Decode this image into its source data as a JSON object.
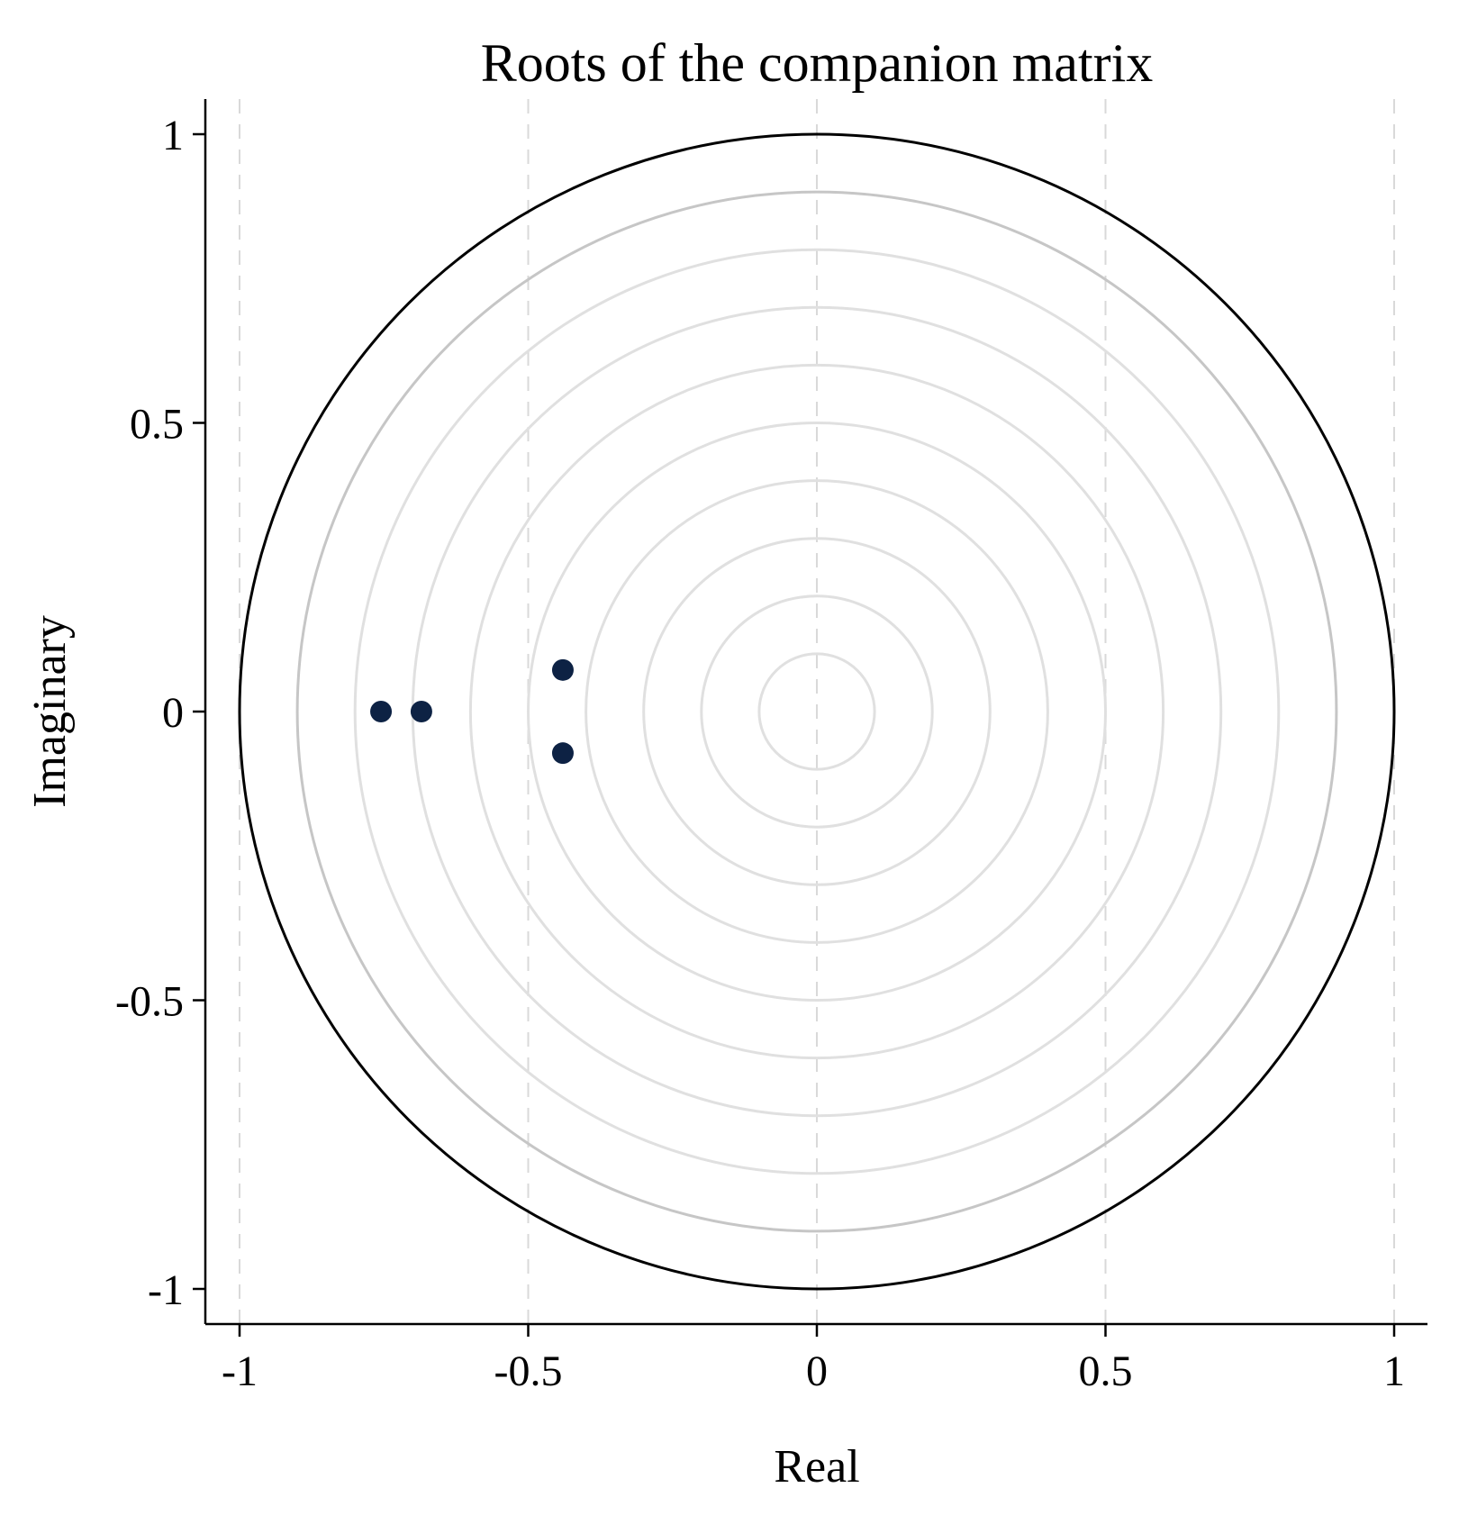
{
  "chart_data": {
    "type": "scatter",
    "title": "Roots of the companion matrix",
    "xlabel": "Real",
    "ylabel": "Imaginary",
    "xlim": [
      -1,
      1
    ],
    "ylim": [
      -1,
      1
    ],
    "xticks": [
      -1,
      -0.5,
      0,
      0.5,
      1
    ],
    "xtick_labels": [
      "-1",
      "-0.5",
      "0",
      "0.5",
      "1"
    ],
    "yticks": [
      -1,
      -0.5,
      0,
      0.5,
      1
    ],
    "ytick_labels": [
      "-1",
      "-0.5",
      "0",
      "0.5",
      "1"
    ],
    "vertical_grid": "dashed",
    "reference_circles": {
      "unit_circle_radius": 1,
      "ring_radii": [
        0.1,
        0.2,
        0.3,
        0.4,
        0.5,
        0.6,
        0.7,
        0.8,
        0.9
      ]
    },
    "points": [
      {
        "x": -0.755,
        "y": 0.0
      },
      {
        "x": -0.685,
        "y": 0.0
      },
      {
        "x": -0.44,
        "y": 0.072
      },
      {
        "x": -0.44,
        "y": -0.072
      }
    ],
    "colors": {
      "points": "#0d2244",
      "unit_circle": "#000000",
      "rings": "#e0e0e0",
      "ring_0_9": "#c6c6c6",
      "grid": "#d9d9d9"
    }
  }
}
